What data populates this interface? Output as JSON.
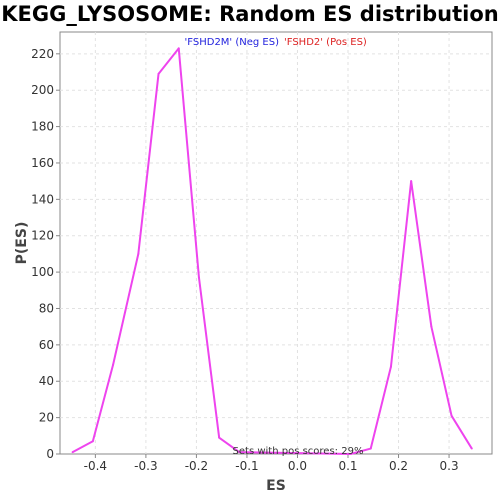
{
  "chart_data": {
    "type": "line",
    "title": "KEGG_LYSOSOME: Random ES distribution",
    "xlabel": "ES",
    "ylabel": "P(ES)",
    "xlim": [
      -0.47,
      0.385
    ],
    "ylim": [
      0,
      232
    ],
    "xticks": [
      -0.4,
      -0.3,
      -0.2,
      -0.1,
      0.0,
      0.1,
      0.2,
      0.3
    ],
    "xtick_labels": [
      "-0.4",
      "-0.3",
      "-0.2",
      "-0.1",
      "0.0",
      "0.1",
      "0.2",
      "0.3"
    ],
    "yticks": [
      0,
      20,
      40,
      60,
      80,
      100,
      120,
      140,
      160,
      180,
      200,
      220
    ],
    "yticks_labels": [
      "0",
      "20",
      "40",
      "60",
      "80",
      "100",
      "120",
      "140",
      "160",
      "180",
      "200",
      "220"
    ],
    "grid": true,
    "series": [
      {
        "color": "#ee44ee",
        "x": [
          -0.445,
          -0.405,
          -0.365,
          -0.315,
          -0.275,
          -0.235,
          -0.195,
          -0.155,
          -0.115,
          0.105,
          0.145,
          0.185,
          0.225,
          0.265,
          0.305,
          0.345
        ],
        "y": [
          1,
          7,
          49,
          110,
          209,
          223,
          97,
          9,
          1,
          0,
          3,
          48,
          150,
          70,
          21,
          3
        ]
      }
    ],
    "legend": {
      "placement": "top-center",
      "entries": [
        {
          "label": "'FSHD2M' (Neg ES)",
          "color": "#2222dd"
        },
        {
          "label": "'FSHD2' (Pos ES)",
          "color": "#dd2222"
        }
      ]
    },
    "annotation": "Sets with pos scores: 29%"
  }
}
